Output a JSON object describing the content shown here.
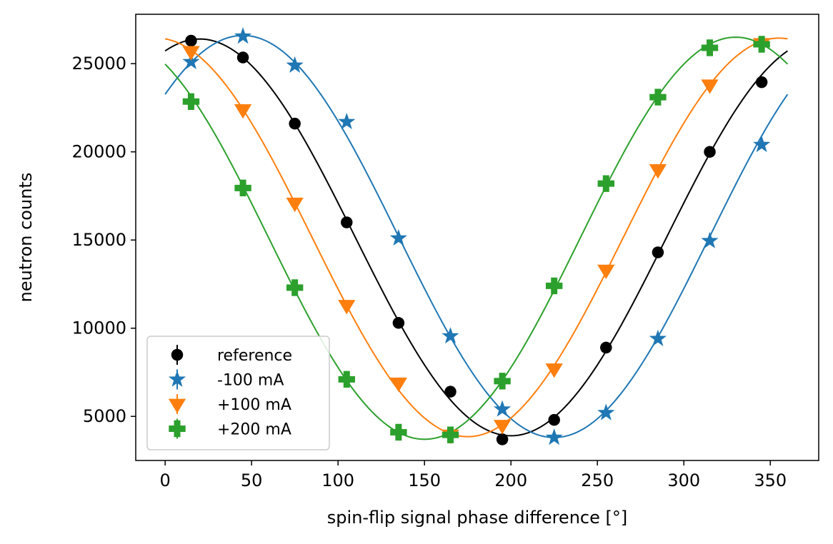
{
  "chart_data": {
    "type": "scatter",
    "title": "",
    "xlabel": "spin-flip signal phase difference [°]",
    "ylabel": "neutron counts",
    "xlim": [
      -17,
      378
    ],
    "ylim": [
      2500,
      27800
    ],
    "xticks": [
      0,
      50,
      100,
      150,
      200,
      250,
      300,
      350
    ],
    "yticks": [
      5000,
      10000,
      15000,
      20000,
      25000
    ],
    "grid": false,
    "legend_position": "lower-left",
    "series": [
      {
        "name": "reference",
        "marker": "circle",
        "color": "#000000",
        "x": [
          15,
          45,
          75,
          105,
          135,
          165,
          195,
          225,
          255,
          285,
          315,
          345
        ],
        "y": [
          26300,
          25350,
          21600,
          16000,
          10300,
          6400,
          3700,
          4800,
          8900,
          14300,
          20000,
          23950
        ],
        "fit": {
          "offset": 15150,
          "amplitude": 11250,
          "phase_min": 200
        }
      },
      {
        "name": "-100 mA",
        "marker": "star",
        "color": "#1f77b4",
        "x": [
          15,
          45,
          75,
          105,
          135,
          165,
          195,
          225,
          255,
          285,
          315,
          345
        ],
        "y": [
          25100,
          26550,
          24900,
          21700,
          15100,
          9550,
          5400,
          3800,
          5200,
          9400,
          14950,
          20400
        ],
        "fit": {
          "offset": 15200,
          "amplitude": 11400,
          "phase_min": 225
        }
      },
      {
        "name": "+100 mA",
        "marker": "triangle-down",
        "color": "#ff7f0e",
        "x": [
          15,
          45,
          75,
          105,
          135,
          165,
          195,
          225,
          255,
          285,
          315,
          345
        ],
        "y": [
          25700,
          22400,
          17100,
          11300,
          6900,
          3950,
          4500,
          7700,
          13300,
          19000,
          23800,
          26150
        ],
        "fit": {
          "offset": 15150,
          "amplitude": 11300,
          "phase_min": 175
        }
      },
      {
        "name": "+200 mA",
        "marker": "plus",
        "color": "#2ca02c",
        "x": [
          15,
          45,
          75,
          105,
          135,
          165,
          195,
          225,
          255,
          285,
          315,
          345
        ],
        "y": [
          22850,
          17950,
          12300,
          7100,
          4100,
          3950,
          7000,
          12400,
          18200,
          23100,
          25900,
          26100
        ],
        "fit": {
          "offset": 15100,
          "amplitude": 11400,
          "phase_min": 150
        }
      }
    ]
  }
}
